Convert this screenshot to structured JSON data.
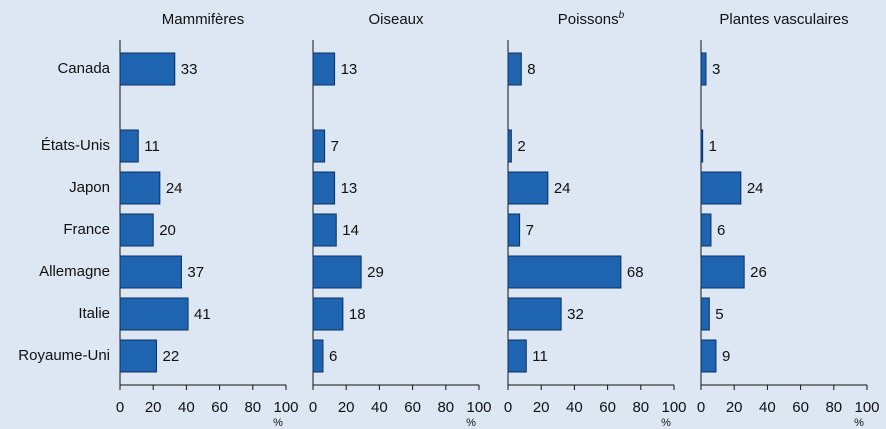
{
  "chart_data": [
    {
      "type": "bar",
      "title": "Mammifères",
      "categories": [
        "Canada",
        "États-Unis",
        "Japon",
        "France",
        "Allemagne",
        "Italie",
        "Royaume-Uni"
      ],
      "values": [
        33,
        11,
        24,
        20,
        37,
        41,
        22
      ],
      "color": "#1f64b0",
      "xlim": [
        0,
        100
      ],
      "xticks": [
        0,
        20,
        40,
        60,
        80,
        100
      ],
      "xlabel": "%"
    },
    {
      "type": "bar",
      "title": "Oiseaux",
      "values": [
        13,
        7,
        13,
        14,
        29,
        18,
        6
      ],
      "color": "#1f64b0",
      "xlim": [
        0,
        100
      ],
      "xticks": [
        0,
        20,
        40,
        60,
        80,
        100
      ],
      "xlabel": "%"
    },
    {
      "type": "bar",
      "title": "Poissons",
      "title_superscript": "b",
      "values": [
        8,
        2,
        24,
        7,
        68,
        32,
        11
      ],
      "color": "#1f64b0",
      "xlim": [
        0,
        100
      ],
      "xticks": [
        0,
        20,
        40,
        60,
        80,
        100
      ],
      "xlabel": "%"
    },
    {
      "type": "bar",
      "title": "Plantes vasculaires",
      "values": [
        3,
        1,
        24,
        6,
        26,
        5,
        9
      ],
      "color": "#1f64b0",
      "xlim": [
        0,
        100
      ],
      "xticks": [
        0,
        20,
        40,
        60,
        80,
        100
      ],
      "xlabel": "%"
    }
  ]
}
